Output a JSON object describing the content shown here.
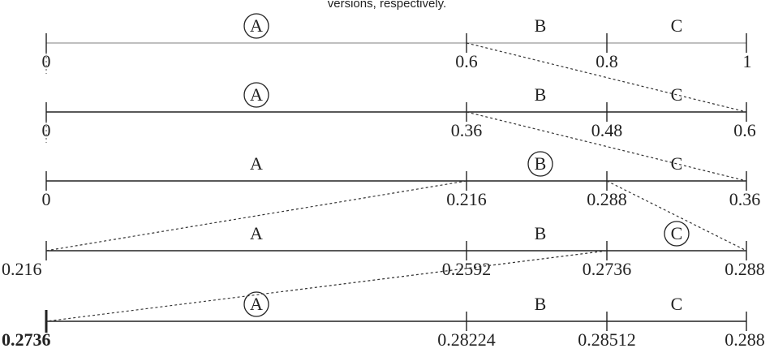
{
  "caption": "versions, respectively.",
  "rows": [
    {
      "segments": [
        {
          "letter": "A",
          "circled": true
        },
        {
          "letter": "B",
          "circled": false
        },
        {
          "letter": "C",
          "circled": false
        }
      ],
      "ticks": [
        "0",
        "0.6",
        "0.8",
        "1"
      ],
      "bold_left": false
    },
    {
      "segments": [
        {
          "letter": "A",
          "circled": true
        },
        {
          "letter": "B",
          "circled": false
        },
        {
          "letter": "C",
          "circled": false
        }
      ],
      "ticks": [
        "0",
        "0.36",
        "0.48",
        "0.6"
      ],
      "bold_left": false
    },
    {
      "segments": [
        {
          "letter": "A",
          "circled": false
        },
        {
          "letter": "B",
          "circled": true
        },
        {
          "letter": "C",
          "circled": false
        }
      ],
      "ticks": [
        "0",
        "0.216",
        "0.288",
        "0.36"
      ],
      "bold_left": false
    },
    {
      "segments": [
        {
          "letter": "A",
          "circled": false
        },
        {
          "letter": "B",
          "circled": false
        },
        {
          "letter": "C",
          "circled": true
        }
      ],
      "ticks": [
        "0.216",
        "0.2592",
        "0.2736",
        "0.288"
      ],
      "bold_left": false
    },
    {
      "segments": [
        {
          "letter": "A",
          "circled": true
        },
        {
          "letter": "B",
          "circled": false
        },
        {
          "letter": "C",
          "circled": false
        }
      ],
      "ticks": [
        "0.2736",
        "0.28224",
        "0.28512",
        "0.288"
      ],
      "bold_left": true
    }
  ],
  "colors": {
    "line": "#222222",
    "first_line": "#aaaaaa",
    "dashed": "#333333",
    "text": "#222222"
  }
}
